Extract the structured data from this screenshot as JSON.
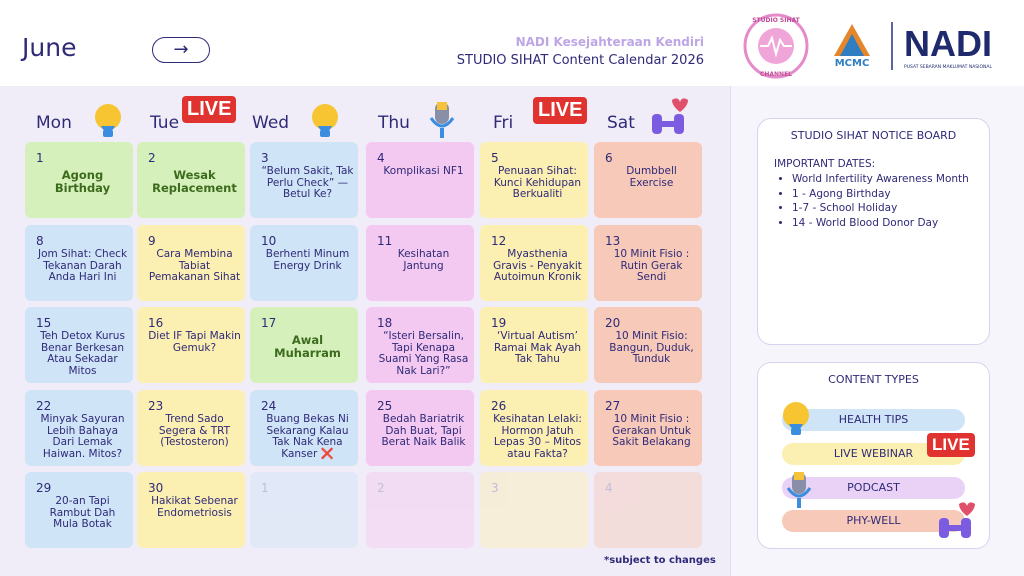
{
  "header": {
    "month": "June",
    "org": "NADI Kesejahteraan Kendiri",
    "title": "STUDIO SIHAT Content Calendar 2026",
    "logos": {
      "studio_top": "STUDIO SIHAT",
      "studio_bottom": "CHANNEL",
      "mcmc": "MCMC",
      "nadi": "NADI",
      "nadi_sub": "PUSAT SEBARAN MAKLUMAT NASIONAL"
    }
  },
  "calendar": {
    "days": [
      "Mon",
      "Tue",
      "Wed",
      "Thu",
      "Fri",
      "Sat"
    ],
    "live": "LIVE",
    "weeks": [
      [
        {
          "day": 1,
          "title": "Agong Birthday"
        },
        {
          "day": 2,
          "title": "Wesak Replacement"
        },
        {
          "day": 3,
          "title": "“Belum Sakit, Tak Perlu Check” — Betul Ke?"
        },
        {
          "day": 4,
          "title": "Komplikasi NF1"
        },
        {
          "day": 5,
          "title": "Penuaan Sihat: Kunci Kehidupan Berkualiti"
        },
        {
          "day": 6,
          "title": "Dumbbell Exercise"
        }
      ],
      [
        {
          "day": 8,
          "title": "Jom Sihat: Check Tekanan Darah Anda Hari Ini"
        },
        {
          "day": 9,
          "title": "Cara Membina Tabiat Pemakanan Sihat"
        },
        {
          "day": 10,
          "title": "Berhenti Minum Energy Drink"
        },
        {
          "day": 11,
          "title": "Kesihatan Jantung"
        },
        {
          "day": 12,
          "title": "Myasthenia Gravis - Penyakit Autoimun Kronik"
        },
        {
          "day": 13,
          "title": "10 Minit Fisio : Rutin Gerak Sendi"
        }
      ],
      [
        {
          "day": 15,
          "title": "Teh Detox Kurus Benar Berkesan Atau Sekadar Mitos"
        },
        {
          "day": 16,
          "title": "Diet IF Tapi Makin Gemuk?"
        },
        {
          "day": 17,
          "title": "Awal Muharram"
        },
        {
          "day": 18,
          "title": "“Isteri Bersalin, Tapi Kenapa Suami Yang Rasa Nak Lari?”"
        },
        {
          "day": 19,
          "title": "‘Virtual Autism’ Ramai Mak Ayah Tak Tahu"
        },
        {
          "day": 20,
          "title": "10 Minit Fisio: Bangun, Duduk, Tunduk"
        }
      ],
      [
        {
          "day": 22,
          "title": "Minyak Sayuran Lebih Bahaya Dari Lemak Haiwan. Mitos?"
        },
        {
          "day": 23,
          "title": "Trend Sado Segera & TRT (Testosteron)"
        },
        {
          "day": 24,
          "title": "Buang Bekas Ni Sekarang Kalau Tak Nak Kena Kanser ❌"
        },
        {
          "day": 25,
          "title": "Bedah Bariatrik Dah Buat, Tapi Berat Naik Balik"
        },
        {
          "day": 26,
          "title": "Kesihatan Lelaki: Hormon Jatuh Lepas 30 – Mitos atau Fakta?"
        },
        {
          "day": 27,
          "title": "10 Minit Fisio : Gerakan Untuk Sakit Belakang"
        }
      ],
      [
        {
          "day": 29,
          "title": "20-an Tapi Rambut Dah Mula Botak"
        },
        {
          "day": 30,
          "title": "Hakikat Sebenar Endometriosis"
        },
        {
          "day": 1
        },
        {
          "day": 2
        },
        {
          "day": 3
        },
        {
          "day": 4
        }
      ]
    ],
    "note": "*subject to changes"
  },
  "notice_board": {
    "title": "STUDIO SIHAT NOTICE BOARD",
    "heading": "IMPORTANT DATES:",
    "items": [
      "World Infertility Awareness Month",
      "1 - Agong Birthday",
      "1-7 - School Holiday",
      "14 - World Blood Donor Day"
    ]
  },
  "content_types": {
    "title": "CONTENT TYPES",
    "items": [
      "HEALTH TIPS",
      "LIVE WEBINAR",
      "PODCAST",
      "PHY-WELL"
    ]
  }
}
